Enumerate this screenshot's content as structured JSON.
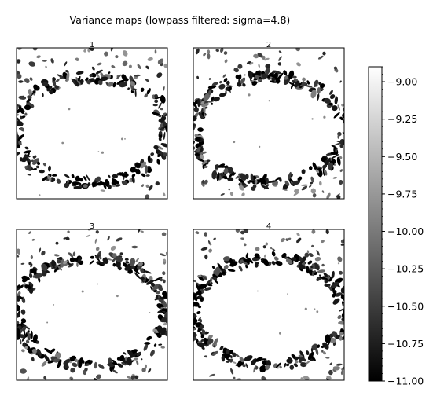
{
  "chart_data": {
    "type": "heatmap",
    "title": "Variance maps (lowpass filtered: sigma=4.8)",
    "colormap": "gray",
    "value_range": [
      -11.0,
      -8.9
    ],
    "panels": [
      {
        "title": "1"
      },
      {
        "title": "2"
      },
      {
        "title": "3"
      },
      {
        "title": "4"
      }
    ],
    "colorbar": {
      "ticks": [
        -9.0,
        -9.25,
        -9.5,
        -9.75,
        -10.0,
        -10.25,
        -10.5,
        -10.75,
        -11.0
      ],
      "tick_labels": [
        "−9.00",
        "−9.25",
        "−9.50",
        "−9.75",
        "−10.00",
        "−10.25",
        "−10.50",
        "−10.75",
        "−11.00"
      ]
    }
  }
}
